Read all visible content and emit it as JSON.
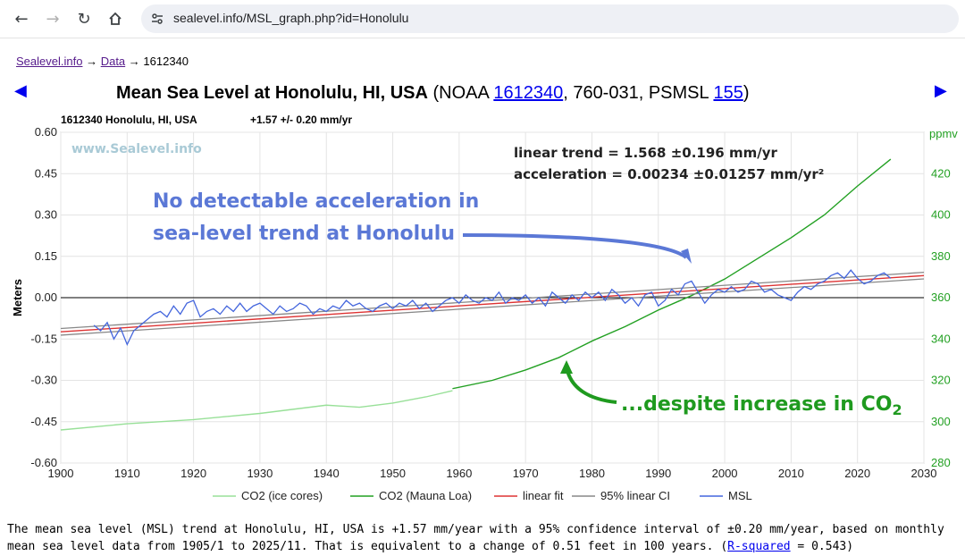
{
  "browser": {
    "url": "sealevel.info/MSL_graph.php?id=Honolulu"
  },
  "breadcrumb": {
    "home": "Sealevel.info",
    "sep1": "→",
    "data": "Data",
    "sep2": "→",
    "current": "1612340"
  },
  "title": {
    "bold": "Mean Sea Level at Honolulu, HI, USA",
    "pre": " (NOAA ",
    "noaa_link": "1612340",
    "mid": ", 760-031, PSMSL ",
    "psmsl_link": "155",
    "post": ")"
  },
  "chart_data": {
    "type": "line",
    "header_left": "1612340 Honolulu, HI, USA",
    "header_rate": "+1.57 +/- 0.20 mm/yr",
    "watermark": "www.Sealevel.info",
    "ylabel": "Meters",
    "y2label": "ppmv",
    "xlim": [
      1900,
      2030
    ],
    "ylim": [
      -0.6,
      0.6
    ],
    "y2lim": [
      280,
      440
    ],
    "x_ticks": [
      "1900",
      "1910",
      "1920",
      "1930",
      "1940",
      "1950",
      "1960",
      "1970",
      "1980",
      "1990",
      "2000",
      "2010",
      "2020",
      "2030"
    ],
    "y_ticks": [
      "0.60",
      "0.45",
      "0.30",
      "0.15",
      "0.00",
      "-0.15",
      "-0.30",
      "-0.45",
      "-0.60"
    ],
    "y2_ticks": [
      "420",
      "400",
      "380",
      "360",
      "340",
      "320",
      "300",
      "280"
    ],
    "grid": true,
    "legend_position": "bottom",
    "trend_text": "linear trend = 1.568 ±0.196 mm/yr",
    "accel_text": "acceleration = 0.00234 ±0.01257 mm/yr²",
    "annotation_main_1": "No detectable acceleration in",
    "annotation_main_2": "sea-level trend at Honolulu",
    "annotation_co2": "...despite increase in CO",
    "annotation_co2_sub": "2",
    "series": [
      {
        "name": "CO2 (ice cores)",
        "color": "#98e098",
        "axis": "right",
        "x": [
          1900,
          1910,
          1920,
          1930,
          1935,
          1940,
          1945,
          1950,
          1955,
          1959
        ],
        "y": [
          296,
          299,
          301,
          304,
          306,
          308,
          307,
          309,
          312,
          315
        ]
      },
      {
        "name": "CO2 (Mauna Loa)",
        "color": "#22a022",
        "axis": "right",
        "x": [
          1959,
          1965,
          1970,
          1975,
          1980,
          1985,
          1990,
          1995,
          2000,
          2005,
          2010,
          2015,
          2020,
          2025
        ],
        "y": [
          316,
          320,
          325,
          331,
          339,
          346,
          354,
          361,
          369,
          379,
          389,
          400,
          414,
          427
        ]
      },
      {
        "name": "linear fit",
        "color": "#dd3333",
        "axis": "left",
        "x": [
          1900,
          2030
        ],
        "y": [
          -0.124,
          0.08
        ]
      },
      {
        "name": "95% linear CI",
        "color": "#888888",
        "axis": "left",
        "band": [
          [
            1900,
            -0.112,
            -0.136
          ],
          [
            2030,
            0.092,
            0.068
          ]
        ]
      },
      {
        "name": "MSL",
        "color": "#4466dd",
        "axis": "left",
        "x": [
          1905,
          1906,
          1907,
          1908,
          1909,
          1910,
          1911,
          1912,
          1913,
          1914,
          1915,
          1916,
          1917,
          1918,
          1919,
          1920,
          1921,
          1922,
          1923,
          1924,
          1925,
          1926,
          1927,
          1928,
          1929,
          1930,
          1931,
          1932,
          1933,
          1934,
          1935,
          1936,
          1937,
          1938,
          1939,
          1940,
          1941,
          1942,
          1943,
          1944,
          1945,
          1946,
          1947,
          1948,
          1949,
          1950,
          1951,
          1952,
          1953,
          1954,
          1955,
          1956,
          1957,
          1958,
          1959,
          1960,
          1961,
          1962,
          1963,
          1964,
          1965,
          1966,
          1967,
          1968,
          1969,
          1970,
          1971,
          1972,
          1973,
          1974,
          1975,
          1976,
          1977,
          1978,
          1979,
          1980,
          1981,
          1982,
          1983,
          1984,
          1985,
          1986,
          1987,
          1988,
          1989,
          1990,
          1991,
          1992,
          1993,
          1994,
          1995,
          1996,
          1997,
          1998,
          1999,
          2000,
          2001,
          2002,
          2003,
          2004,
          2005,
          2006,
          2007,
          2008,
          2009,
          2010,
          2011,
          2012,
          2013,
          2014,
          2015,
          2016,
          2017,
          2018,
          2019,
          2020,
          2021,
          2022,
          2023,
          2024,
          2025
        ],
        "y": [
          -0.1,
          -0.12,
          -0.09,
          -0.15,
          -0.11,
          -0.17,
          -0.12,
          -0.1,
          -0.08,
          -0.06,
          -0.05,
          -0.07,
          -0.03,
          -0.06,
          -0.02,
          -0.01,
          -0.07,
          -0.05,
          -0.04,
          -0.06,
          -0.03,
          -0.05,
          -0.02,
          -0.05,
          -0.03,
          -0.02,
          -0.04,
          -0.06,
          -0.03,
          -0.05,
          -0.04,
          -0.02,
          -0.03,
          -0.06,
          -0.04,
          -0.05,
          -0.03,
          -0.04,
          -0.01,
          -0.03,
          -0.02,
          -0.04,
          -0.05,
          -0.03,
          -0.02,
          -0.04,
          -0.02,
          -0.03,
          -0.01,
          -0.04,
          -0.02,
          -0.05,
          -0.03,
          -0.01,
          0.0,
          -0.02,
          0.01,
          -0.01,
          -0.02,
          0.0,
          -0.01,
          0.02,
          -0.02,
          0.0,
          -0.01,
          0.01,
          -0.02,
          0.0,
          -0.03,
          0.02,
          0.0,
          -0.02,
          0.01,
          -0.01,
          0.02,
          0.0,
          0.02,
          -0.01,
          0.03,
          0.01,
          -0.02,
          0.0,
          -0.03,
          0.01,
          0.02,
          -0.03,
          -0.01,
          0.03,
          0.01,
          0.05,
          0.06,
          0.02,
          -0.02,
          0.01,
          0.03,
          0.02,
          0.04,
          0.02,
          0.03,
          0.06,
          0.05,
          0.02,
          0.03,
          0.01,
          0.0,
          -0.01,
          0.02,
          0.04,
          0.03,
          0.05,
          0.06,
          0.08,
          0.09,
          0.07,
          0.1,
          0.07,
          0.05,
          0.06,
          0.08,
          0.09,
          0.07
        ]
      }
    ]
  },
  "footer": {
    "text1": "The mean sea level (MSL) trend at Honolulu, HI, USA is +1.57 mm/year with a 95% confidence interval of ±0.20 mm/year, based on monthly mean sea level data from 1905/1 to 2025/11. That is equivalent to a change of 0.51 feet in 100 years. (",
    "rsq_link": "R-squared",
    "text2": " = 0.543)"
  }
}
